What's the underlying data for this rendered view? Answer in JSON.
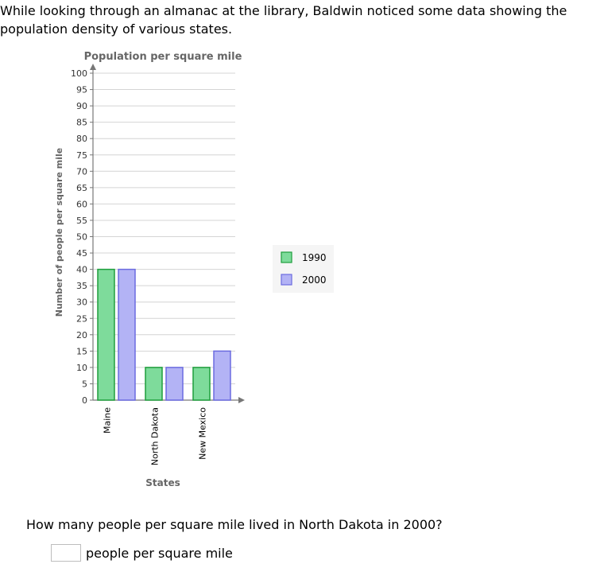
{
  "intro_text": "While looking through an almanac at the library, Baldwin noticed some data showing the population density of various states.",
  "chart_data": {
    "type": "bar",
    "title": "Population per square mile",
    "xlabel": "States",
    "ylabel": "Number of people per square mile",
    "categories": [
      "Maine",
      "North Dakota",
      "New Mexico"
    ],
    "series": [
      {
        "name": "1990",
        "values": [
          40,
          10,
          10
        ],
        "color": "#7edb9b",
        "stroke": "#1e9e3c"
      },
      {
        "name": "2000",
        "values": [
          40,
          10,
          15
        ],
        "color": "#b3b3f5",
        "stroke": "#6b6be0"
      }
    ],
    "ylim": [
      0,
      100
    ],
    "yticks": [
      0,
      5,
      10,
      15,
      20,
      25,
      30,
      35,
      40,
      45,
      50,
      55,
      60,
      65,
      70,
      75,
      80,
      85,
      90,
      95,
      100
    ],
    "grid": true,
    "legend_position": "right"
  },
  "question": {
    "text": "How many people per square mile lived in North Dakota in 2000?",
    "answer_value": "",
    "unit_label": "people per square mile"
  }
}
